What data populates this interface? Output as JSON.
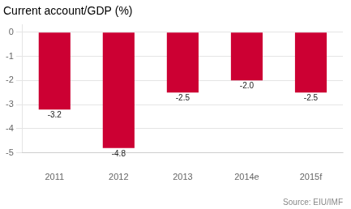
{
  "chart_data": {
    "type": "bar",
    "title": "Current account/GDP (%)",
    "categories": [
      "2011",
      "2012",
      "2013",
      "2014e",
      "2015f"
    ],
    "values": [
      -3.2,
      -4.8,
      -2.5,
      -2.0,
      -2.5
    ],
    "value_labels": [
      "-3.2",
      "-4.8",
      "-2.5",
      "-2.0",
      "-2.5"
    ],
    "data_labels": true,
    "color": "#cc0033",
    "ylim": [
      -5,
      0.3
    ],
    "yticks": [
      0,
      -1,
      -2,
      -3,
      -4,
      -5
    ],
    "grid": true,
    "annotation": "Source: EIU/IMF"
  }
}
